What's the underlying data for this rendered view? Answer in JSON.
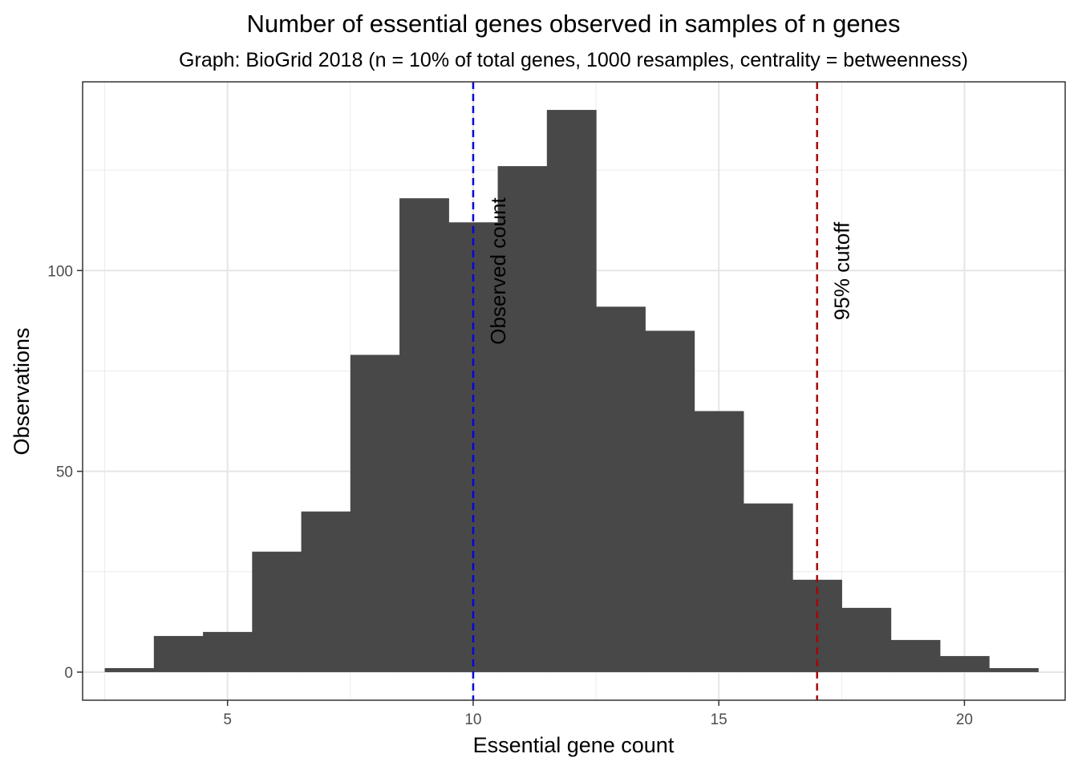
{
  "chart_data": {
    "type": "bar",
    "title": "Number of essential genes observed in samples of n genes",
    "subtitle": "Graph: BioGrid 2018 (n = 10% of total genes, 1000 resamples, centrality = betweenness)",
    "xlabel": "Essential gene count",
    "ylabel": "Observations",
    "xlim": [
      2.05,
      22.05
    ],
    "ylim": [
      -7,
      147
    ],
    "x_ticks": [
      {
        "value": 5,
        "label": "5"
      },
      {
        "value": 10,
        "label": "10"
      },
      {
        "value": 15,
        "label": "15"
      },
      {
        "value": 20,
        "label": "20"
      }
    ],
    "y_ticks": [
      {
        "value": 0,
        "label": "0"
      },
      {
        "value": 50,
        "label": "50"
      },
      {
        "value": 100,
        "label": "100"
      }
    ],
    "bin_width": 1,
    "x": [
      3,
      4,
      5,
      6,
      7,
      8,
      9,
      10,
      11,
      12,
      13,
      14,
      15,
      16,
      17,
      18,
      19,
      20,
      21
    ],
    "values": [
      1,
      9,
      10,
      30,
      40,
      79,
      118,
      112,
      126,
      140,
      91,
      85,
      65,
      42,
      23,
      16,
      8,
      4,
      1
    ],
    "bar_color": "#484848",
    "grid": true,
    "reference_lines": [
      {
        "label": "Observed count",
        "x": 10,
        "color": "#0000ee"
      },
      {
        "label": "95% cutoff",
        "x": 17,
        "color": "#b20000"
      }
    ]
  }
}
